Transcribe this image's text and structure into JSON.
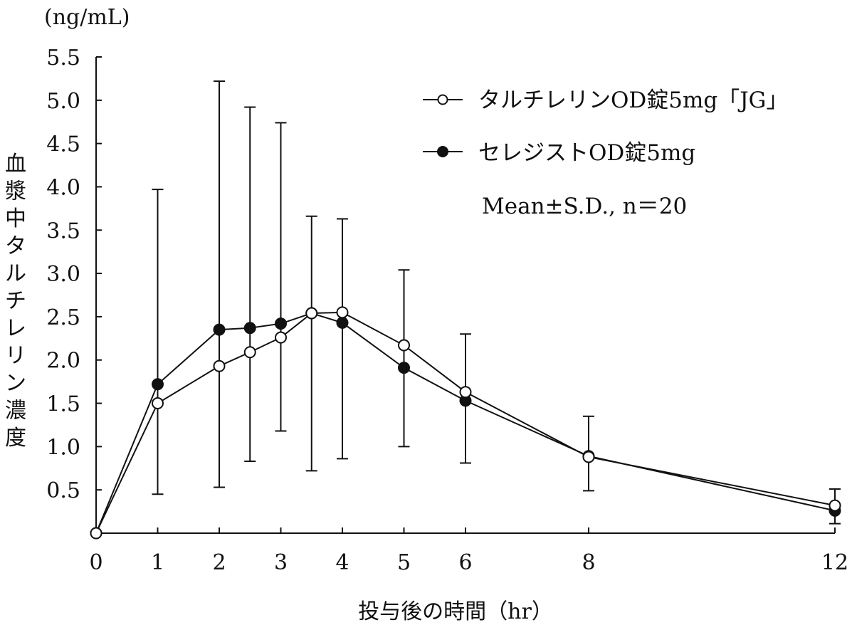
{
  "chart_data": {
    "type": "line",
    "title": "",
    "unit_label": "(ng/mL)",
    "ylabel": "血漿中タルチレリン濃度",
    "xlabel": "投与後の時間（hr）",
    "xlim": [
      0,
      12
    ],
    "ylim": [
      0,
      5.5
    ],
    "x_ticks": [
      0,
      1,
      2,
      3,
      4,
      5,
      6,
      8,
      12
    ],
    "x_tick_labels": [
      "0",
      "1",
      "2",
      "3",
      "4",
      "5",
      "6",
      "8",
      "12"
    ],
    "y_ticks": [
      0.5,
      1.0,
      1.5,
      2.0,
      2.5,
      3.0,
      3.5,
      4.0,
      4.5,
      5.0,
      5.5
    ],
    "y_tick_labels": [
      "0.5",
      "1.0",
      "1.5",
      "2.0",
      "2.5",
      "3.0",
      "3.5",
      "4.0",
      "4.5",
      "5.0",
      "5.5"
    ],
    "grid": false,
    "legend_position": "top-right",
    "x": [
      0,
      1,
      2,
      2.5,
      3,
      3.5,
      4,
      5,
      6,
      8,
      12
    ],
    "series": [
      {
        "name": "タルチレリンOD錠5mg「JG」",
        "marker": "open-circle",
        "values": [
          0,
          1.5,
          1.93,
          2.09,
          2.26,
          2.54,
          2.55,
          2.17,
          1.63,
          0.88,
          0.32
        ]
      },
      {
        "name": "セレジストOD錠5mg",
        "marker": "filled-circle",
        "values": [
          0,
          1.72,
          2.35,
          2.37,
          2.42,
          2.54,
          2.43,
          1.91,
          1.53,
          0.89,
          0.26
        ]
      }
    ],
    "error_bars": {
      "upper": [
        null,
        3.97,
        5.22,
        4.92,
        4.74,
        3.66,
        3.63,
        3.04,
        2.3,
        1.35,
        0.51
      ],
      "lower": [
        null,
        0.45,
        0.53,
        0.83,
        1.18,
        0.72,
        0.86,
        1.0,
        0.81,
        0.49,
        0.11
      ]
    },
    "annotation": "Mean±S.D., n＝20",
    "colors": {
      "line": "#111111",
      "open_fill": "#ffffff",
      "filled_fill": "#111111"
    }
  }
}
